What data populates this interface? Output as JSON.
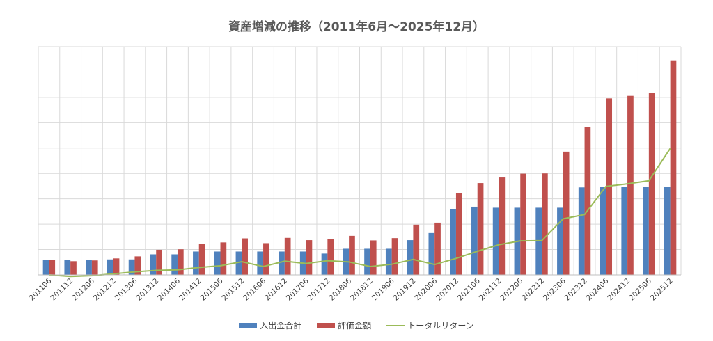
{
  "chart_data": {
    "type": "bar",
    "title": "資産増減の推移（2011年6月～2025年12月）",
    "xlabel": "",
    "ylabel": "",
    "ylim": [
      0,
      9
    ],
    "grid": true,
    "legend_placement": "bottom",
    "categories": [
      "201106",
      "201112",
      "201206",
      "201212",
      "201306",
      "201312",
      "201406",
      "201412",
      "201506",
      "201512",
      "201606",
      "201612",
      "201706",
      "201712",
      "201806",
      "201812",
      "201906",
      "201912",
      "202006",
      "202012",
      "202106",
      "202112",
      "202206",
      "202212",
      "202306",
      "202312",
      "202406",
      "202412",
      "202506",
      "202512"
    ],
    "series": [
      {
        "name": "入出金合計",
        "type": "bar",
        "color": "#4F81BD",
        "values": [
          0.6,
          0.6,
          0.6,
          0.61,
          0.61,
          0.81,
          0.81,
          0.92,
          0.92,
          0.92,
          0.92,
          0.92,
          0.92,
          0.84,
          1.03,
          1.03,
          1.03,
          1.37,
          1.65,
          2.58,
          2.69,
          2.65,
          2.65,
          2.65,
          2.65,
          3.45,
          3.47,
          3.47,
          3.47,
          3.47
        ]
      },
      {
        "name": "評価金額",
        "type": "bar",
        "color": "#C0504D",
        "values": [
          0.6,
          0.54,
          0.57,
          0.65,
          0.73,
          0.99,
          1.01,
          1.21,
          1.28,
          1.44,
          1.25,
          1.46,
          1.37,
          1.4,
          1.54,
          1.36,
          1.45,
          1.98,
          2.06,
          3.23,
          3.62,
          3.84,
          3.99,
          4.0,
          4.86,
          5.83,
          6.96,
          7.06,
          7.18,
          8.46
        ]
      },
      {
        "name": "トータルリターン",
        "type": "line",
        "color": "#9BBB59",
        "values": [
          0.0,
          -0.06,
          -0.03,
          0.04,
          0.12,
          0.18,
          0.2,
          0.29,
          0.36,
          0.52,
          0.33,
          0.54,
          0.45,
          0.56,
          0.51,
          0.33,
          0.42,
          0.61,
          0.41,
          0.65,
          0.93,
          1.19,
          1.34,
          1.35,
          2.21,
          2.38,
          3.49,
          3.59,
          3.71,
          4.99
        ]
      }
    ]
  }
}
